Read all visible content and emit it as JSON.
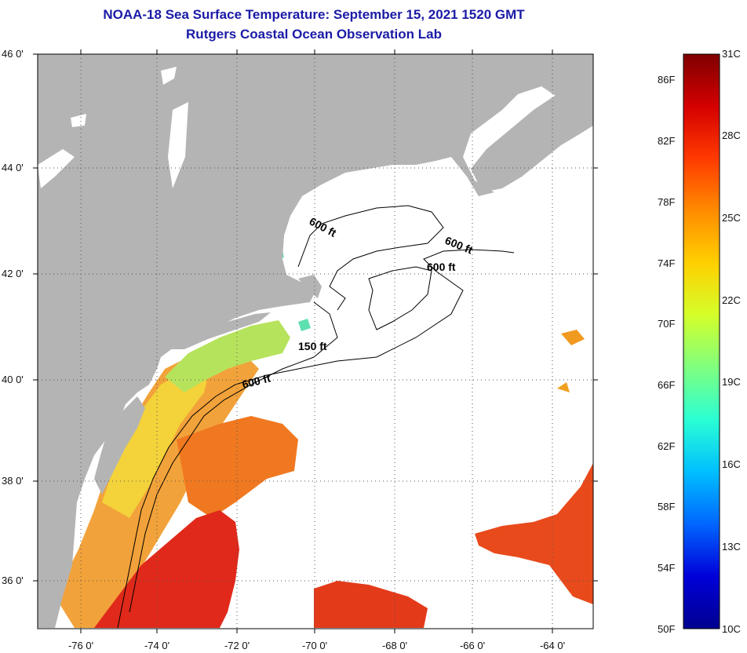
{
  "title": {
    "line1": "NOAA-18 Sea Surface Temperature:  September 15, 2021 1520 GMT",
    "line2": "Rutgers Coastal Ocean Observation Lab"
  },
  "map": {
    "latitude_labels": [
      "46 0'",
      "44 0'",
      "42 0'",
      "40 0'",
      "38 0'",
      "36 0'"
    ],
    "longitude_labels": [
      "-76 0'",
      "-74 0'",
      "-72 0'",
      "-70 0'",
      "-68 0'",
      "-66 0'",
      "-64 0'"
    ],
    "isobath_labels": [
      "600 ft",
      "600 ft",
      "600 ft",
      "150 ft",
      "600 ft"
    ],
    "colors": {
      "land": "#b4b4b4",
      "ocean_no_data": "#ffffff",
      "grid": "#555555"
    }
  },
  "colorbar": {
    "fahrenheit_labels": [
      "86F",
      "82F",
      "78F",
      "74F",
      "70F",
      "66F",
      "62F",
      "58F",
      "54F",
      "50F"
    ],
    "celsius_labels": [
      "31C",
      "28C",
      "25C",
      "22C",
      "19C",
      "16C",
      "13C",
      "10C"
    ],
    "min_c": 10,
    "max_c": 31,
    "gradient_colors": [
      "#7f0000",
      "#d40000",
      "#ff3a00",
      "#ff8c00",
      "#ffd000",
      "#d4ff2a",
      "#7fff7f",
      "#2affd4",
      "#00bfff",
      "#0066ff",
      "#0000d9",
      "#00008f"
    ]
  }
}
